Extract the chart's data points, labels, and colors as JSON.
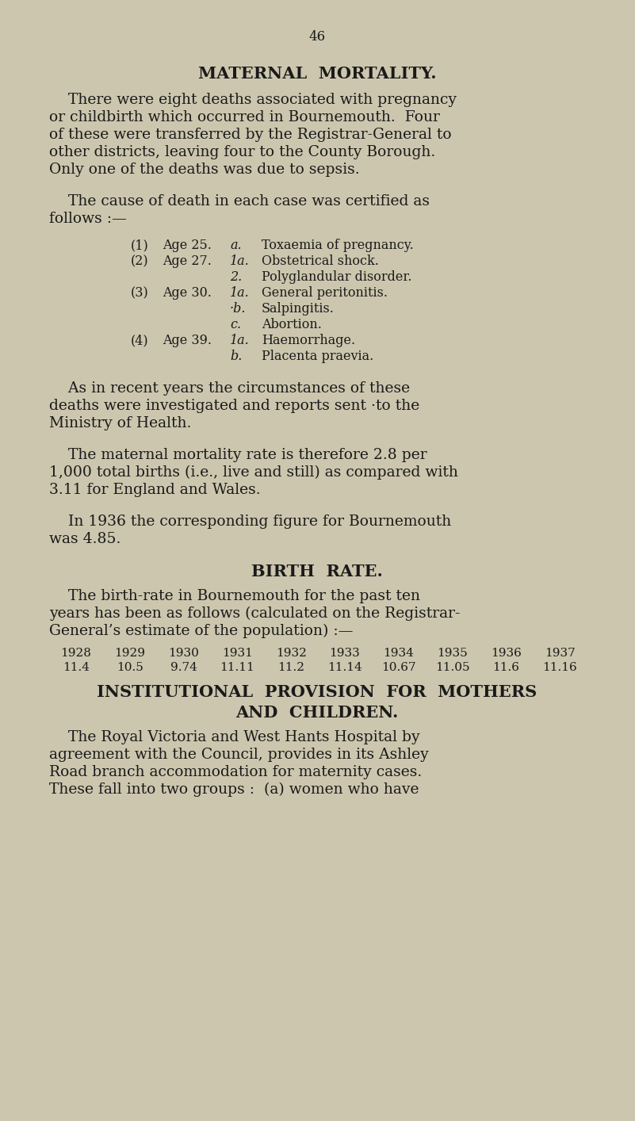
{
  "bg_color": "#ccc6ae",
  "text_color": "#1a1a1a",
  "page_number": "46",
  "title": "MATERNAL  MORTALITY.",
  "para1_lines": [
    "    There were eight deaths associated with pregnancy",
    "or childbirth which occurred in Bournemouth.  Four",
    "of these were transferred by the Registrar-General to",
    "other districts, leaving four to the County Borough.",
    "Only one of the deaths was due to sepsis."
  ],
  "para2_lines": [
    "    The cause of death in each case was certified as",
    "follows :—"
  ],
  "cases": [
    {
      "num": "(1)",
      "age": "Age 25.",
      "sub_a_label": "a.",
      "sub_a": "Toxaemia of pregnancy."
    },
    {
      "num": "(2)",
      "age": "Age 27.",
      "sub_a_label": "1a.",
      "sub_a": "Obstetrical shock.",
      "sub_b_label": "2.",
      "sub_b": "Polyglandular disorder."
    },
    {
      "num": "(3)",
      "age": "Age 30.",
      "sub_a_label": "1a.",
      "sub_a": "General peritonitis.",
      "sub_b_label": "·b.",
      "sub_b": "Salpingitis.",
      "sub_c_label": "c.",
      "sub_c": "Abortion."
    },
    {
      "num": "(4)",
      "age": "Age 39.",
      "sub_a_label": "1a.",
      "sub_a": "Haemorrhage.",
      "sub_b_label": "b.",
      "sub_b": "Placenta praevia."
    }
  ],
  "para3_lines": [
    "    As in recent years the circumstances of these",
    "deaths were investigated and reports sent ·to the",
    "Ministry of Health."
  ],
  "para4_lines": [
    "    The maternal mortality rate is therefore 2.8 per",
    "1,000 total births (i.e., live and still) as compared with",
    "3.11 for England and Wales."
  ],
  "para5_lines": [
    "    In 1936 the corresponding figure for Bournemouth",
    "was 4.85."
  ],
  "title2": "BIRTH  RATE.",
  "para6_lines": [
    "    The birth-rate in Bournemouth for the past ten",
    "years has been as follows (calculated on the Registrar-",
    "General’s estimate of the population) :—"
  ],
  "birth_years": [
    "1928",
    "1929",
    "1930",
    "1931",
    "1932",
    "1933",
    "1934",
    "1935",
    "1936",
    "1937"
  ],
  "birth_rates": [
    "11.4",
    "10.5",
    "9.74",
    "11.11",
    "11.2",
    "11.14",
    "10.67",
    "11.05",
    "11.6",
    "11.16"
  ],
  "title3a": "INSTITUTIONAL  PROVISION  FOR  MOTHERS",
  "title3b": "AND  CHILDREN.",
  "para7_lines": [
    "    The Royal Victoria and West Hants Hospital by",
    "agreement with the Council, provides in its Ashley",
    "Road branch accommodation for maternity cases.",
    "These fall into two groups :  (a) women who have"
  ]
}
